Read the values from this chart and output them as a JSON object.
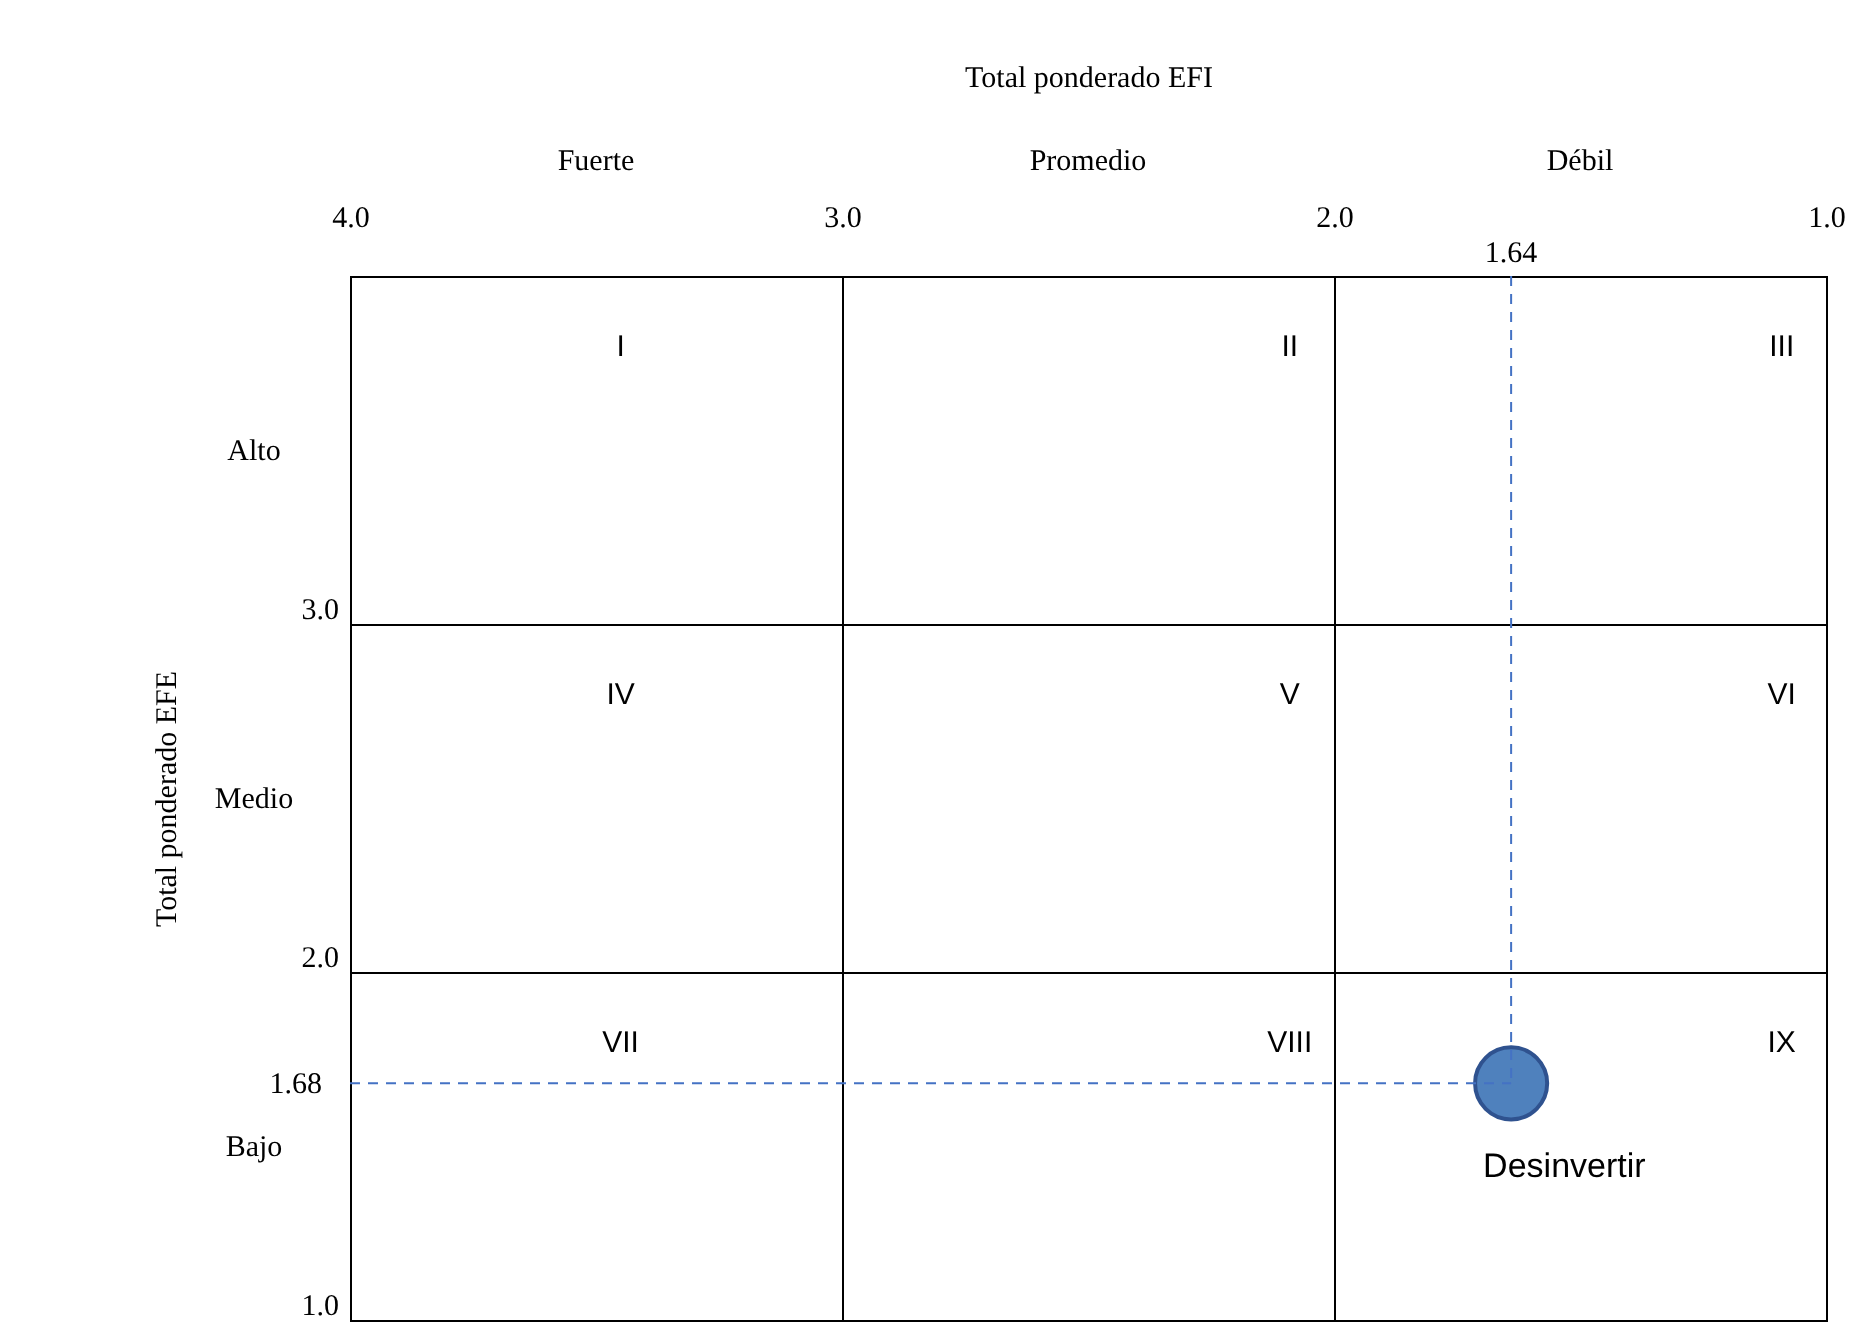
{
  "chart_data": {
    "type": "scatter",
    "xlabel": "Total ponderado EFI",
    "ylabel": "Total ponderado EFE",
    "x": [
      1.64
    ],
    "values": [
      1.68
    ],
    "color": "#4f81bd",
    "marker": "circle",
    "xlim": [
      4,
      1
    ],
    "ylim": [
      1,
      4
    ],
    "xticks": [
      {
        "value": 4,
        "label": "4.0"
      },
      {
        "value": 3,
        "label": "3.0"
      },
      {
        "value": 2,
        "label": "2.0"
      },
      {
        "value": 1,
        "label": "1.0"
      }
    ],
    "yticks": [
      {
        "value": 1,
        "label": "1.0"
      },
      {
        "value": 2,
        "label": "2.0"
      },
      {
        "value": 3,
        "label": "3.0"
      },
      {
        "value": 4,
        "label": null
      }
    ],
    "grid": true,
    "ref_lines": [
      {
        "axis": "x",
        "value": 1.64,
        "label": "1.64",
        "color": "#4472c4",
        "line_style": "dashed"
      },
      {
        "axis": "y",
        "value": 1.68,
        "label": "1.68",
        "color": "#4472c4",
        "line_style": "dashed"
      }
    ],
    "annotations": [
      "Fuerte",
      "Promedio",
      "Débil",
      "Alto",
      "Medio",
      "Bajo",
      "I",
      "II",
      "III",
      "IV",
      "V",
      "VI",
      "VII",
      "VIII",
      "IX",
      {
        "text": "Desinvertir",
        "x": 1.64,
        "y": 1.68
      }
    ]
  }
}
